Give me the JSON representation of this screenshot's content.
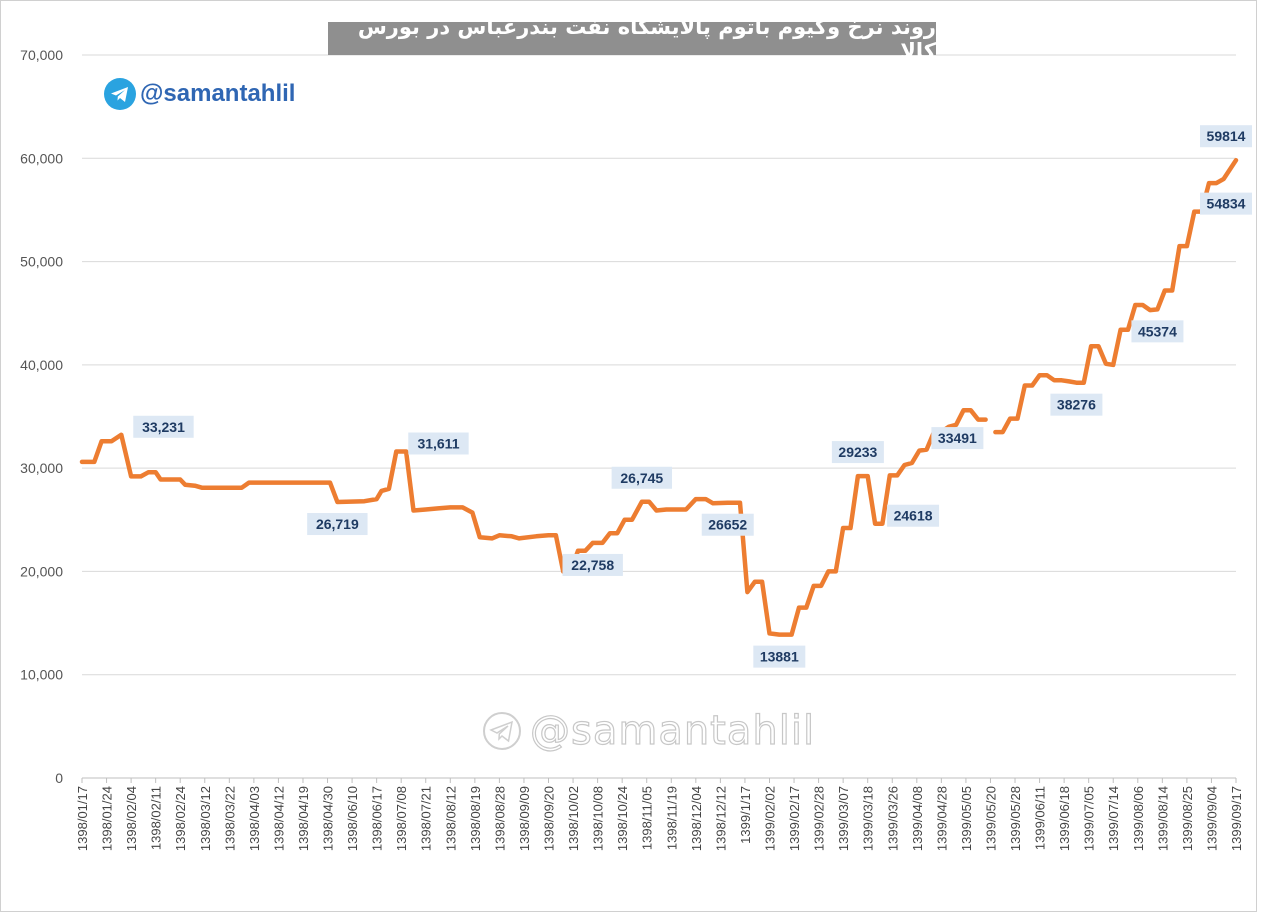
{
  "chart_data": {
    "type": "line",
    "title": "روند نرخ وکیوم باتوم پالایشگاه نفت بندرعباس در بورس کالا",
    "handle": "@samantahlil",
    "watermark": "@samantahlil",
    "y_ticks": [
      "0",
      "10,000",
      "20,000",
      "30,000",
      "40,000",
      "50,000",
      "60,000",
      "70,000"
    ],
    "ylim": [
      0,
      70000
    ],
    "grid": true,
    "line_color": "#ed7d31",
    "label_bg": "#dde8f4",
    "label_color": "#1f3b63",
    "categories": [
      "1398/01/17",
      "1398/01/24",
      "1398/02/04",
      "1398/02/11",
      "1398/02/24",
      "1398/03/12",
      "1398/03/22",
      "1398/04/03",
      "1398/04/12",
      "1398/04/19",
      "1398/04/30",
      "1398/06/10",
      "1398/06/17",
      "1398/07/08",
      "1398/07/21",
      "1398/08/12",
      "1398/08/19",
      "1398/08/28",
      "1398/09/09",
      "1398/09/20",
      "1398/10/02",
      "1398/10/08",
      "1398/10/24",
      "1398/11/05",
      "1398/11/19",
      "1398/12/04",
      "1398/12/12",
      "1399/1/17",
      "1399/02/02",
      "1399/02/17",
      "1399/02/28",
      "1399/03/07",
      "1399/03/18",
      "1399/03/26",
      "1399/04/08",
      "1399/04/28",
      "1399/05/05",
      "1399/05/20",
      "1399/05/28",
      "1399/06/11",
      "1399/06/18",
      "1399/07/05",
      "1399/07/14",
      "1399/08/06",
      "1399/08/14",
      "1399/08/25",
      "1399/09/04",
      "1399/09/17"
    ],
    "series": [
      {
        "points": [
          [
            0,
            30600
          ],
          [
            0.5,
            30600
          ],
          [
            0.8,
            32600
          ],
          [
            1.2,
            32600
          ],
          [
            1.6,
            33231
          ],
          [
            2.0,
            29200
          ],
          [
            2.4,
            29200
          ],
          [
            2.7,
            29600
          ],
          [
            3.0,
            29600
          ],
          [
            3.2,
            28900
          ],
          [
            4.0,
            28900
          ],
          [
            4.2,
            28400
          ],
          [
            4.6,
            28300
          ],
          [
            4.9,
            28100
          ],
          [
            5.5,
            28100
          ],
          [
            6.5,
            28100
          ],
          [
            6.8,
            28600
          ],
          [
            7.5,
            28600
          ],
          [
            8.5,
            28600
          ],
          [
            9.5,
            28600
          ],
          [
            10.1,
            28600
          ],
          [
            10.4,
            26719
          ],
          [
            11.5,
            26800
          ],
          [
            12.0,
            27000
          ],
          [
            12.2,
            27800
          ],
          [
            12.5,
            28000
          ],
          [
            12.8,
            31611
          ],
          [
            13.2,
            31611
          ],
          [
            13.5,
            25900
          ],
          [
            14.0,
            26000
          ],
          [
            14.5,
            26100
          ],
          [
            15.0,
            26200
          ],
          [
            15.5,
            26200
          ],
          [
            15.9,
            25700
          ],
          [
            16.2,
            23300
          ],
          [
            16.7,
            23200
          ],
          [
            17.0,
            23500
          ],
          [
            17.5,
            23400
          ],
          [
            17.8,
            23200
          ],
          [
            18.5,
            23400
          ],
          [
            19.0,
            23500
          ],
          [
            19.3,
            23500
          ],
          [
            19.6,
            20000
          ],
          [
            19.9,
            20000
          ],
          [
            20.2,
            22000
          ],
          [
            20.5,
            22000
          ],
          [
            20.8,
            22758
          ],
          [
            21.2,
            22758
          ],
          [
            21.5,
            23700
          ],
          [
            21.8,
            23700
          ],
          [
            22.1,
            25000
          ],
          [
            22.4,
            25000
          ],
          [
            22.8,
            26745
          ],
          [
            23.1,
            26745
          ],
          [
            23.4,
            25900
          ],
          [
            23.8,
            26000
          ],
          [
            24.2,
            26000
          ],
          [
            24.6,
            26000
          ],
          [
            25.0,
            27000
          ],
          [
            25.4,
            27000
          ],
          [
            25.7,
            26600
          ],
          [
            26.3,
            26652
          ],
          [
            26.8,
            26652
          ],
          [
            27.1,
            18000
          ],
          [
            27.4,
            19000
          ],
          [
            27.7,
            19000
          ],
          [
            28.0,
            14000
          ],
          [
            28.4,
            13881
          ],
          [
            28.9,
            13881
          ],
          [
            29.2,
            16500
          ],
          [
            29.5,
            16500
          ],
          [
            29.8,
            18600
          ],
          [
            30.1,
            18600
          ],
          [
            30.4,
            20000
          ],
          [
            30.7,
            20000
          ],
          [
            31.0,
            24200
          ],
          [
            31.3,
            24200
          ],
          [
            31.6,
            29233
          ],
          [
            32.0,
            29233
          ],
          [
            32.3,
            24618
          ],
          [
            32.6,
            24618
          ],
          [
            32.9,
            29300
          ],
          [
            33.2,
            29300
          ],
          [
            33.5,
            30300
          ],
          [
            33.8,
            30500
          ],
          [
            34.1,
            31700
          ],
          [
            34.4,
            31800
          ],
          [
            34.7,
            33500
          ],
          [
            35.0,
            33500
          ],
          [
            35.3,
            34000
          ],
          [
            35.6,
            34200
          ],
          [
            35.9,
            35600
          ],
          [
            36.2,
            35600
          ],
          [
            36.5,
            34700
          ],
          [
            36.8,
            34700
          ]
        ]
      },
      {
        "points": [
          [
            37.2,
            33491
          ],
          [
            37.5,
            33491
          ],
          [
            37.8,
            34800
          ],
          [
            38.1,
            34800
          ],
          [
            38.4,
            38000
          ],
          [
            38.7,
            38000
          ],
          [
            39.0,
            39000
          ],
          [
            39.3,
            39000
          ],
          [
            39.6,
            38500
          ],
          [
            39.9,
            38500
          ],
          [
            40.2,
            38400
          ],
          [
            40.5,
            38276
          ],
          [
            40.8,
            38276
          ],
          [
            41.1,
            41800
          ],
          [
            41.4,
            41800
          ],
          [
            41.7,
            40100
          ],
          [
            42.0,
            40000
          ],
          [
            42.3,
            43400
          ],
          [
            42.6,
            43400
          ],
          [
            42.9,
            45800
          ],
          [
            43.2,
            45800
          ],
          [
            43.5,
            45300
          ],
          [
            43.8,
            45374
          ],
          [
            44.1,
            47200
          ],
          [
            44.4,
            47200
          ],
          [
            44.7,
            51500
          ],
          [
            45.0,
            51500
          ],
          [
            45.3,
            54834
          ],
          [
            45.6,
            54834
          ],
          [
            45.9,
            57600
          ],
          [
            46.2,
            57600
          ],
          [
            46.5,
            58000
          ],
          [
            47.0,
            59814
          ]
        ]
      }
    ],
    "data_labels": [
      {
        "text": "33,231",
        "x": 1.6,
        "y": 33231,
        "pos": "right"
      },
      {
        "text": "31,611",
        "x": 12.8,
        "y": 31611,
        "pos": "right"
      },
      {
        "text": "26,719",
        "x": 10.4,
        "y": 26719,
        "pos": "below"
      },
      {
        "text": "26,745",
        "x": 22.8,
        "y": 26745,
        "pos": "above"
      },
      {
        "text": "22,758",
        "x": 20.8,
        "y": 22758,
        "pos": "below"
      },
      {
        "text": "26652",
        "x": 26.3,
        "y": 26652,
        "pos": "below"
      },
      {
        "text": "13881",
        "x": 28.4,
        "y": 13881,
        "pos": "below"
      },
      {
        "text": "29233",
        "x": 31.6,
        "y": 29233,
        "pos": "above"
      },
      {
        "text": "24618",
        "x": 32.3,
        "y": 24618,
        "pos": "right"
      },
      {
        "text": "33491",
        "x": 37.2,
        "y": 33491,
        "pos": "left"
      },
      {
        "text": "38276",
        "x": 40.5,
        "y": 38276,
        "pos": "below"
      },
      {
        "text": "45374",
        "x": 43.8,
        "y": 45374,
        "pos": "below"
      },
      {
        "text": "54834",
        "x": 45.3,
        "y": 54834,
        "pos": "right"
      },
      {
        "text": "59814",
        "x": 47.0,
        "y": 59814,
        "pos": "above"
      }
    ]
  }
}
